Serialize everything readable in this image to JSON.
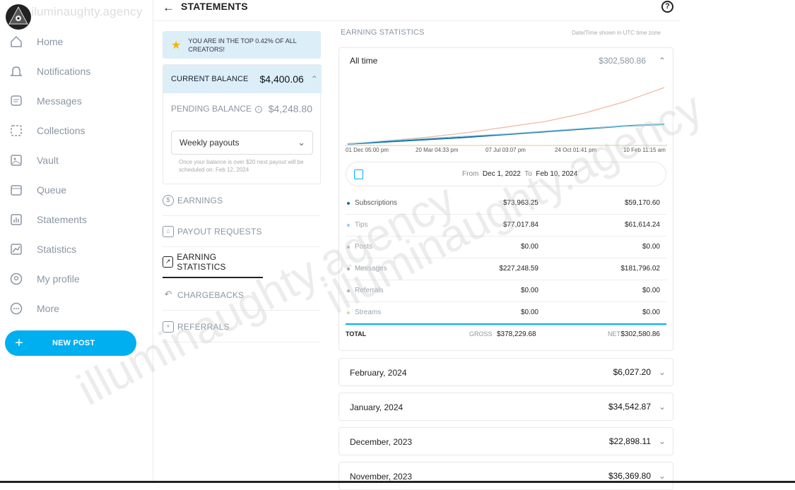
{
  "watermark": "iluminaughty.agency",
  "sidebar": {
    "items": [
      {
        "label": "Home",
        "icon": "home-icon"
      },
      {
        "label": "Notifications",
        "icon": "bell-icon"
      },
      {
        "label": "Messages",
        "icon": "message-icon"
      },
      {
        "label": "Collections",
        "icon": "collections-icon"
      },
      {
        "label": "Vault",
        "icon": "vault-icon"
      },
      {
        "label": "Queue",
        "icon": "calendar-icon"
      },
      {
        "label": "Statements",
        "icon": "statements-icon"
      },
      {
        "label": "Statistics",
        "icon": "statistics-icon"
      },
      {
        "label": "My profile",
        "icon": "profile-icon"
      },
      {
        "label": "More",
        "icon": "more-icon"
      }
    ],
    "new_post": "NEW POST"
  },
  "header": {
    "title": "STATEMENTS"
  },
  "left": {
    "banner": "YOU ARE IN THE TOP 0.42% OF ALL CREATORS!",
    "current_balance_label": "CURRENT BALANCE",
    "current_balance": "$4,400.06",
    "pending_label": "PENDING BALANCE",
    "pending_value": "$4,248.80",
    "payout_select": "Weekly payouts",
    "payout_note": "Once your balance is over $20 next payout will be scheduled on: Feb 12, 2024",
    "menu": [
      {
        "label": "EARNINGS",
        "icon": "dollar-icon"
      },
      {
        "label": "PAYOUT REQUESTS",
        "icon": "bank-icon"
      },
      {
        "label": "EARNING STATISTICS",
        "icon": "chart-icon"
      },
      {
        "label": "CHARGEBACKS",
        "icon": "chargeback-icon"
      },
      {
        "label": "REFERRALS",
        "icon": "referral-icon"
      }
    ]
  },
  "stats": {
    "section_title": "EARNING STATISTICS",
    "timezone_note": "Date/Time shown in UTC time zone",
    "period_label": "All time",
    "period_total": "$302,580.86",
    "from_label": "From",
    "from_date": "Dec 1, 2022",
    "to_label": "To",
    "to_date": "Feb 10, 2024",
    "rows": [
      {
        "name": "Subscriptions",
        "gross": "$73,963.25",
        "net": "$59,170.60",
        "color": "#1a6fa0"
      },
      {
        "name": "Tips",
        "gross": "$77,017.84",
        "net": "$61,614.24",
        "color": "#8ed1e8"
      },
      {
        "name": "Posts",
        "gross": "$0.00",
        "net": "$0.00",
        "color": "#c9a9b5"
      },
      {
        "name": "Messages",
        "gross": "$227,248.59",
        "net": "$181,796.02",
        "color": "#a0a8b0"
      },
      {
        "name": "Referrals",
        "gross": "$0.00",
        "net": "$0.00",
        "color": "#a8b0b8"
      },
      {
        "name": "Streams",
        "gross": "$0.00",
        "net": "$0.00",
        "color": "#e8d090"
      }
    ],
    "total_label": "TOTAL",
    "gross_label": "GROSS",
    "gross_total": "$378,229.68",
    "net_label": "NET",
    "net_total": "$302,580.86"
  },
  "chart_data": {
    "type": "line",
    "x_ticks": [
      "01 Dec 05:00 pm",
      "20 Mar 04:33 pm",
      "07 Jul 03:07 pm",
      "24 Oct 01:41 pm",
      "10 Feb 11:15 am"
    ],
    "series": [
      {
        "name": "Messages",
        "color": "#f0b8a0",
        "values": [
          0,
          0.06,
          0.12,
          0.2,
          0.3,
          0.4,
          0.55,
          0.75,
          1.0
        ]
      },
      {
        "name": "Subscriptions",
        "color": "#1a6fa0",
        "values": [
          0,
          0.04,
          0.08,
          0.12,
          0.17,
          0.22,
          0.27,
          0.32,
          0.35
        ]
      },
      {
        "name": "Tips",
        "color": "#8ed1e8",
        "values": [
          0,
          0.06,
          0.1,
          0.14,
          0.18,
          0.23,
          0.28,
          0.32,
          0.35
        ]
      }
    ]
  },
  "months": [
    {
      "label": "February, 2024",
      "value": "$6,027.20"
    },
    {
      "label": "January, 2024",
      "value": "$34,542.87"
    },
    {
      "label": "December, 2023",
      "value": "$22,898.11"
    },
    {
      "label": "November, 2023",
      "value": "$36,369.80"
    }
  ]
}
